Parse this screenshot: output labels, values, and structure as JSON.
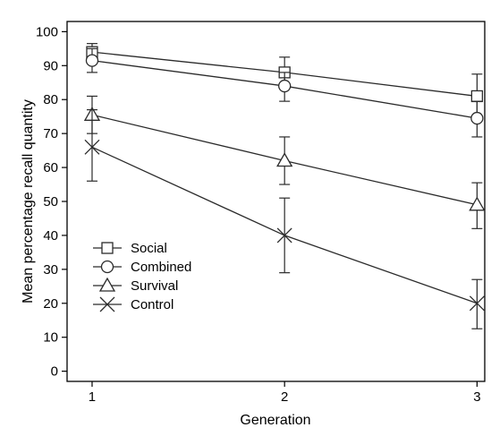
{
  "chart_data": {
    "type": "line",
    "xlabel": "Generation",
    "ylabel": "Mean percentage recall quantity",
    "x": [
      1,
      2,
      3
    ],
    "xticks": [
      "1",
      "2",
      "3"
    ],
    "xlim": [
      0.87,
      3.04
    ],
    "ylim": [
      -3,
      103
    ],
    "yticks": [
      "0",
      "10",
      "20",
      "30",
      "40",
      "50",
      "60",
      "70",
      "80",
      "90",
      "100"
    ],
    "grid": false,
    "legend_position": "lower-left",
    "series": [
      {
        "name": "Social",
        "marker": "square",
        "values": [
          94,
          88,
          81
        ],
        "err_low": [
          91,
          84,
          75
        ],
        "err_high": [
          96.5,
          92.5,
          87.5
        ]
      },
      {
        "name": "Combined",
        "marker": "circle",
        "values": [
          91.5,
          84,
          74.5
        ],
        "err_low": [
          88,
          79.5,
          69
        ],
        "err_high": [
          95,
          88,
          79.5
        ]
      },
      {
        "name": "Survival",
        "marker": "triangle",
        "values": [
          75.5,
          62,
          49
        ],
        "err_low": [
          70,
          55,
          42
        ],
        "err_high": [
          81,
          69,
          55.5
        ]
      },
      {
        "name": "Control",
        "marker": "x",
        "values": [
          66,
          40,
          20
        ],
        "err_low": [
          56,
          29,
          12.5
        ],
        "err_high": [
          77,
          51,
          27
        ]
      }
    ]
  }
}
